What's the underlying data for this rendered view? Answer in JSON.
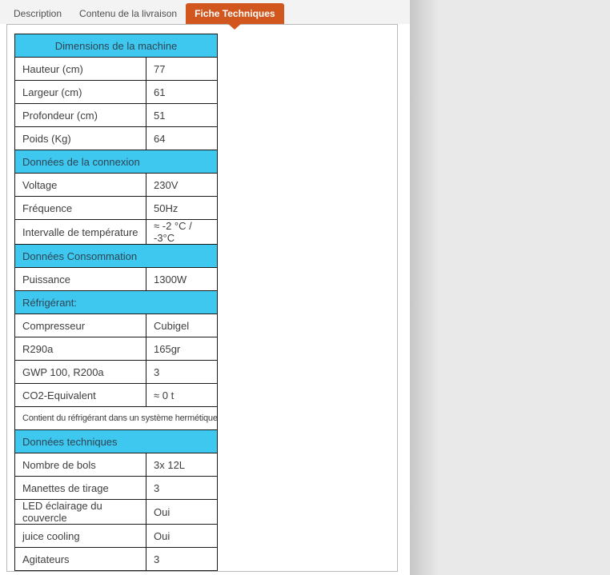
{
  "tabs": {
    "items": [
      {
        "label": "Description",
        "active": false
      },
      {
        "label": "Contenu de la livraison",
        "active": false
      },
      {
        "label": "Fiche Techniques",
        "active": true
      }
    ]
  },
  "spec_table": {
    "sections": [
      {
        "header": "Dimensions de la machine",
        "header_align": "center",
        "rows": [
          {
            "label": "Hauteur (cm)",
            "value": "77"
          },
          {
            "label": "Largeur (cm)",
            "value": "61"
          },
          {
            "label": "Profondeur (cm)",
            "value": "51"
          },
          {
            "label": "Poids (Kg)",
            "value": "64"
          }
        ]
      },
      {
        "header": "Données de la connexion",
        "header_align": "left",
        "rows": [
          {
            "label": "Voltage",
            "value": "230V"
          },
          {
            "label": "Fréquence",
            "value": "50Hz"
          },
          {
            "label": "Intervalle de température",
            "value": "≈ -2 °C / -3°C"
          }
        ]
      },
      {
        "header": "Données Consommation",
        "header_align": "left",
        "rows": [
          {
            "label": "Puissance",
            "value": "1300W"
          }
        ]
      },
      {
        "header": "Réfrigérant:",
        "header_align": "left",
        "rows": [
          {
            "label": "Compresseur",
            "value": "Cubigel"
          },
          {
            "label": "R290a",
            "value": "165gr"
          },
          {
            "label": "GWP 100, R200a",
            "value": "3"
          },
          {
            "label": "CO2-Equivalent",
            "value": "≈ 0 t"
          }
        ],
        "note": "Contient du réfrigérant dans un système hermétique"
      },
      {
        "header": "Données techniques",
        "header_align": "left",
        "rows": [
          {
            "label": "Nombre de bols",
            "value": "3x 12L"
          },
          {
            "label": "Manettes de tirage",
            "value": "3"
          },
          {
            "label": "LED éclairage du couvercle",
            "value": "Oui"
          },
          {
            "label": "juice cooling",
            "value": "Oui"
          },
          {
            "label": "Agitateurs",
            "value": "3"
          }
        ]
      }
    ]
  },
  "colors": {
    "accent_orange": "#d2571e",
    "section_header_bg": "#3ec7ef",
    "table_border": "#1a1a1a",
    "page_background": "#e9e9e9"
  }
}
